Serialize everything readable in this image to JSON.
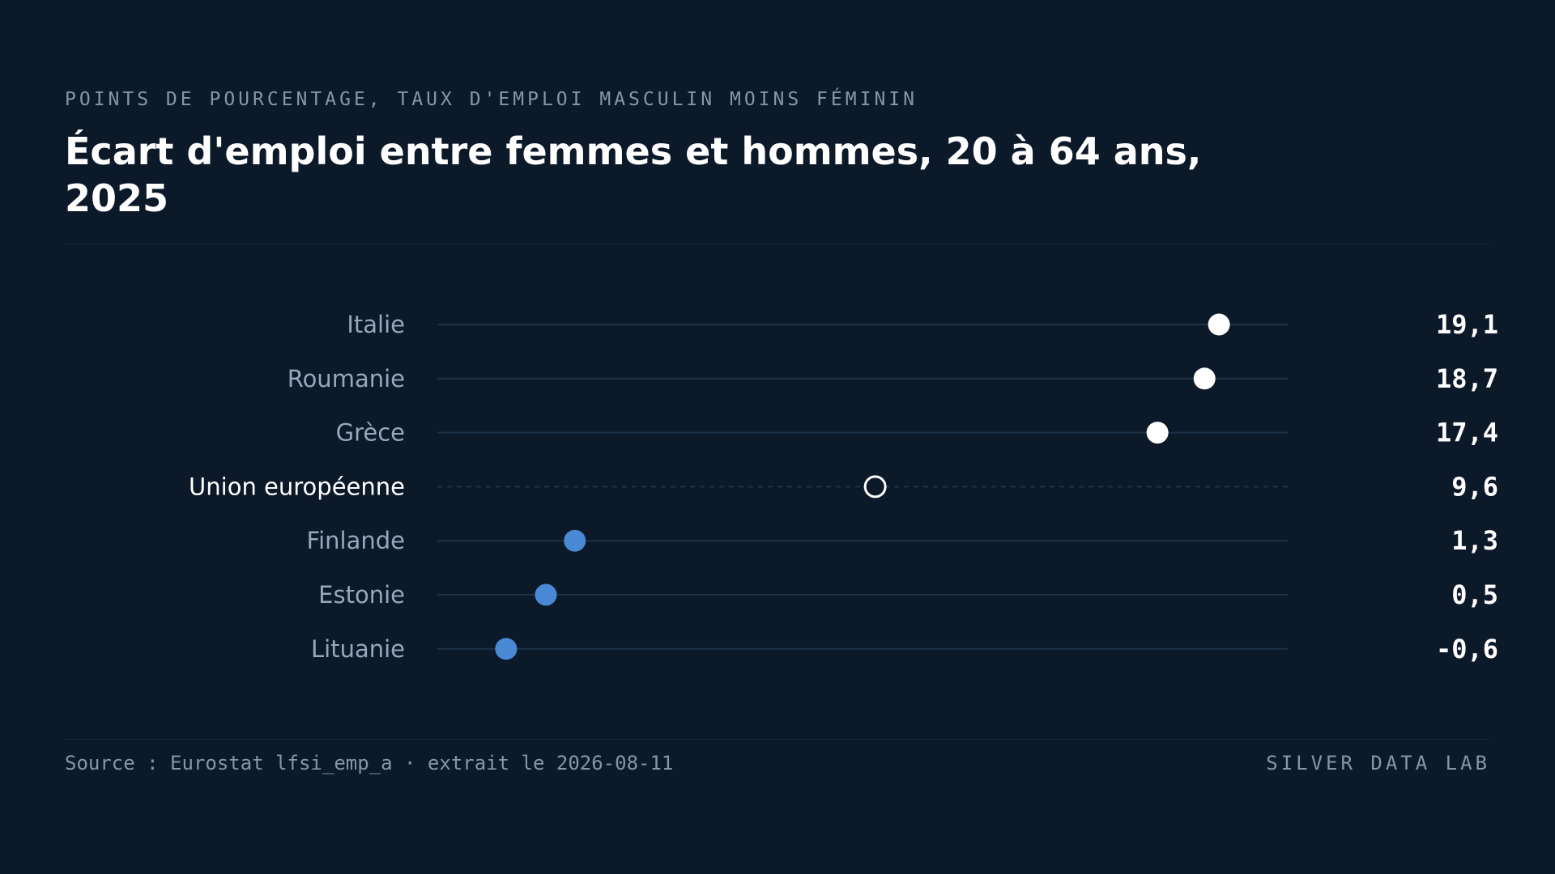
{
  "header": {
    "subtitle": "POINTS DE POURCENTAGE, TAUX D'EMPLOI MASCULIN MOINS FÉMININ",
    "title": "Écart d'emploi entre femmes et hommes, 20 à 64 ans, 2025"
  },
  "footer": {
    "source": "Source : Eurostat lfsi_emp_a · extrait le 2026-08-11",
    "brand": "SILVER DATA LAB"
  },
  "colors": {
    "background": "#0c1929",
    "high_dot": "#ffffff",
    "low_dot": "#4a89d4",
    "reference_dot": "#ffffff",
    "track": "#1d3247",
    "label": "#98a7bd",
    "reference_label": "#ffffff",
    "value": "#ffffff"
  },
  "chart_data": {
    "type": "dot",
    "categories": [
      "Italie",
      "Roumanie",
      "Grèce",
      "Union européenne",
      "Finlande",
      "Estonie",
      "Lituanie"
    ],
    "values": [
      19.1,
      18.7,
      17.4,
      9.6,
      1.3,
      0.5,
      -0.6
    ],
    "value_labels": [
      "19,1",
      "18,7",
      "17,4",
      "9,6",
      "1,3",
      "0,5",
      "-0,6"
    ],
    "reference_category": "Union européenne",
    "groups": [
      "high",
      "high",
      "high",
      "reference",
      "low",
      "low",
      "low"
    ],
    "xlim": [
      -2.5,
      21
    ],
    "grid": false,
    "legend": "none"
  }
}
